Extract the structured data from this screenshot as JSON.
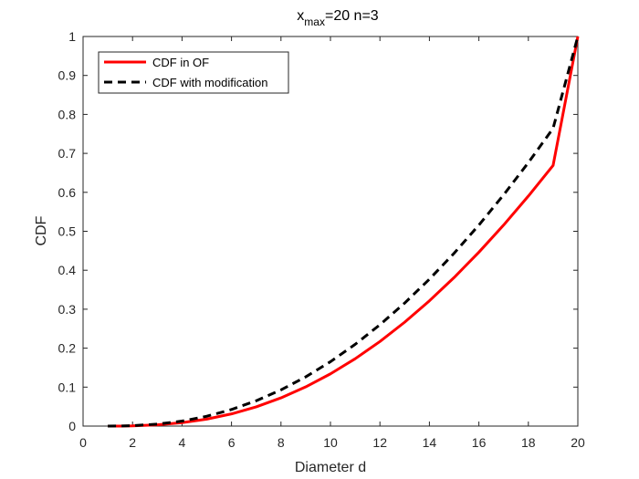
{
  "chart_data": {
    "type": "line",
    "title_prefix": "x",
    "title_subscript": "max",
    "title_suffix": "=20 n=3",
    "xlabel": "Diameter d",
    "ylabel": "CDF",
    "xlim": [
      0,
      20
    ],
    "ylim": [
      0,
      1
    ],
    "xticks": [
      0,
      2,
      4,
      6,
      8,
      10,
      12,
      14,
      16,
      18,
      20
    ],
    "yticks": [
      0,
      0.1,
      0.2,
      0.3,
      0.4,
      0.5,
      0.6,
      0.7,
      0.8,
      0.9,
      1
    ],
    "grid": false,
    "legend_position": "top-left",
    "series": [
      {
        "name": "CDF in OF",
        "color": "#ff0000",
        "style": "solid",
        "x": [
          1,
          1.5,
          2,
          3,
          4,
          5,
          6,
          7,
          8,
          9,
          10,
          11,
          12,
          13,
          14,
          15,
          16,
          17,
          18,
          19,
          20
        ],
        "y": [
          0,
          0.0001,
          0.0006,
          0.0032,
          0.0087,
          0.0179,
          0.0313,
          0.0494,
          0.0724,
          0.1006,
          0.1341,
          0.1729,
          0.2171,
          0.2667,
          0.3215,
          0.3814,
          0.4463,
          0.516,
          0.5904,
          0.669,
          1.0
        ]
      },
      {
        "name": "CDF with modification",
        "color": "#000000",
        "style": "dashed",
        "x": [
          1,
          1.5,
          2,
          3,
          4,
          5,
          6,
          7,
          8,
          9,
          10,
          11,
          12,
          13,
          14,
          15,
          16,
          17,
          18,
          19,
          20
        ],
        "y": [
          0,
          0.0003,
          0.0011,
          0.005,
          0.0128,
          0.0252,
          0.0425,
          0.065,
          0.0929,
          0.1263,
          0.1653,
          0.2099,
          0.2601,
          0.3158,
          0.3771,
          0.4438,
          0.516,
          0.5935,
          0.6763,
          0.7643,
          1.0
        ]
      }
    ]
  }
}
